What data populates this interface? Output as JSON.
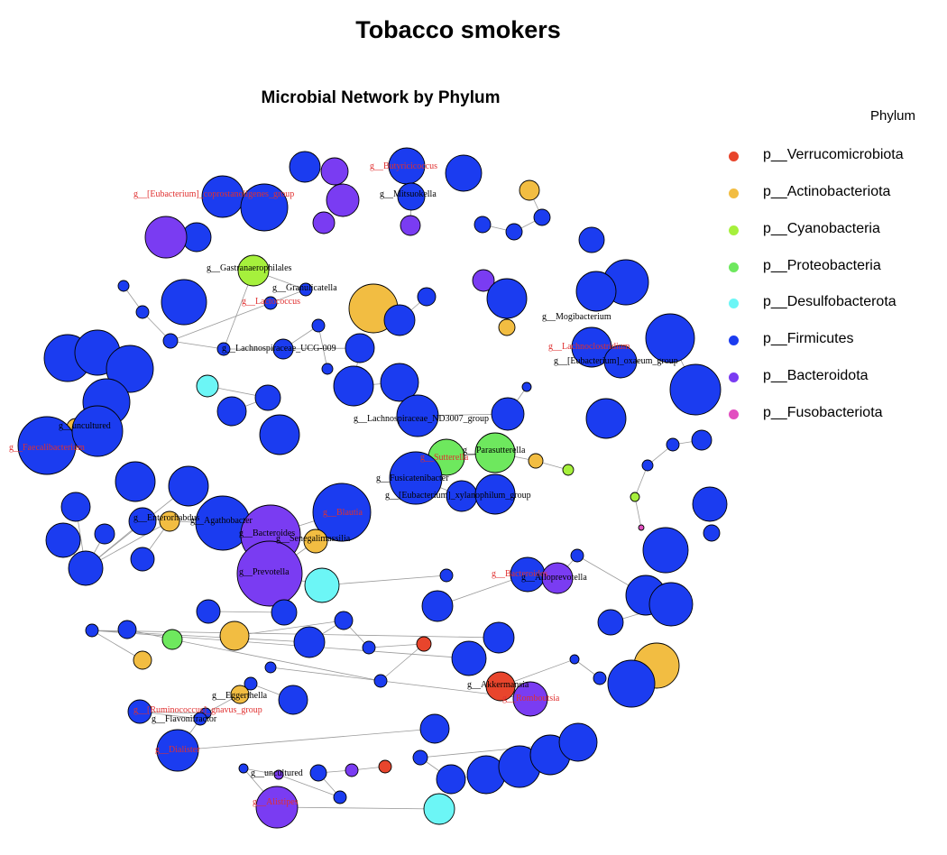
{
  "title": "Tobacco smokers",
  "network_title": "Microbial Network by Phylum",
  "legend": {
    "title": "Phylum",
    "items": [
      {
        "name": "p__Verrucomicrobiota",
        "color": "#e8452c"
      },
      {
        "name": "p__Actinobacteriota",
        "color": "#f2bd42"
      },
      {
        "name": "p__Cyanobacteria",
        "color": "#a6f03c"
      },
      {
        "name": "p__Proteobacteria",
        "color": "#6ee85e"
      },
      {
        "name": "p__Desulfobacterota",
        "color": "#6cf6f6"
      },
      {
        "name": "p__Firmicutes",
        "color": "#1b3cf0"
      },
      {
        "name": "p__Bacteroidota",
        "color": "#7a3cf2"
      },
      {
        "name": "p__Fusobacteriota",
        "color": "#e24fc0"
      }
    ]
  },
  "label_colors": {
    "highlighted": "#e03030",
    "normal": "#000000"
  },
  "node_labels": [
    {
      "text": "g__[Eubacterium]_coprostanoligenes_group",
      "highlighted": true
    },
    {
      "text": "g__Butyricicoccus",
      "highlighted": true
    },
    {
      "text": "g__Mitsuokella",
      "highlighted": false
    },
    {
      "text": "g__Gastranaerophilales",
      "highlighted": false
    },
    {
      "text": "g__Granulicatella",
      "highlighted": false
    },
    {
      "text": "g__Lactococcus",
      "highlighted": true
    },
    {
      "text": "g__Lachnospiraceae_UCG-009",
      "highlighted": false
    },
    {
      "text": "g__Mogibacterium",
      "highlighted": false
    },
    {
      "text": "g__Lachnoclostridium",
      "highlighted": true
    },
    {
      "text": "g__[Eubacterium]_oxaeum_group",
      "highlighted": false
    },
    {
      "text": "g__uncultured",
      "highlighted": false
    },
    {
      "text": "g__Faecalibacterium",
      "highlighted": true
    },
    {
      "text": "g__Lachnospiraceae_ND3007_group",
      "highlighted": false
    },
    {
      "text": "g__Parasutterella",
      "highlighted": false
    },
    {
      "text": "g__Sutterella",
      "highlighted": true
    },
    {
      "text": "g__Fusicatenibacter",
      "highlighted": false
    },
    {
      "text": "g__[Eubacterium]_xylanophilum_group",
      "highlighted": false
    },
    {
      "text": "g__Enterorhabdus",
      "highlighted": false
    },
    {
      "text": "g__Agathobacter",
      "highlighted": false
    },
    {
      "text": "g__Bacteroides",
      "highlighted": false
    },
    {
      "text": "g__Blautia",
      "highlighted": true
    },
    {
      "text": "g__Senegalimassilia",
      "highlighted": false
    },
    {
      "text": "g__Prevotella",
      "highlighted": false
    },
    {
      "text": "g__Bacteroides",
      "highlighted": true
    },
    {
      "text": "g__Alloprevotella",
      "highlighted": false
    },
    {
      "text": "g__Eggerthella",
      "highlighted": false
    },
    {
      "text": "g__[Ruminococcus]_gnavus_group",
      "highlighted": true
    },
    {
      "text": "g__Flavonifractor",
      "highlighted": false
    },
    {
      "text": "g__Akkermansia",
      "highlighted": false
    },
    {
      "text": "g__Romboutsia",
      "highlighted": true
    },
    {
      "text": "g__Dialister",
      "highlighted": true
    },
    {
      "text": "g__uncultured",
      "highlighted": false
    },
    {
      "text": "g__Alistipes",
      "highlighted": true
    }
  ]
}
